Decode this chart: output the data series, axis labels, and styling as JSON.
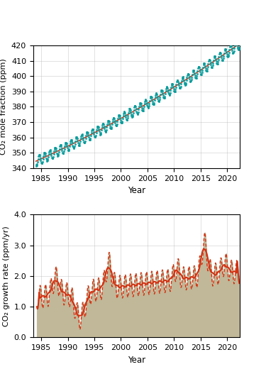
{
  "top_panel": {
    "ylabel": "CO₂ mole fraction (ppm)",
    "xlabel": "Year",
    "xlim": [
      1983.5,
      2022.3
    ],
    "ylim": [
      340,
      420
    ],
    "yticks": [
      340,
      350,
      360,
      370,
      380,
      390,
      400,
      410,
      420
    ],
    "xticks": [
      1985,
      1990,
      1995,
      2000,
      2005,
      2010,
      2015,
      2020
    ],
    "line_color_smooth": "#d43010",
    "marker_color_raw": "#009999",
    "bg_color": "#ffffff",
    "grid_color": "#aaaaaa"
  },
  "bottom_panel": {
    "ylabel": "CO₂ growth rate (ppm/yr)",
    "xlabel": "Year",
    "xlim": [
      1983.5,
      2022.3
    ],
    "ylim": [
      0.0,
      4.0
    ],
    "yticks": [
      0.0,
      1.0,
      2.0,
      3.0,
      4.0
    ],
    "xticks": [
      1985,
      1990,
      1995,
      2000,
      2005,
      2010,
      2015,
      2020
    ],
    "fill_color": "#c0b898",
    "line_color_smooth": "#d43010",
    "line_color_raw": "#d43010",
    "bg_color": "#ffffff",
    "grid_color": "#aaaaaa"
  }
}
